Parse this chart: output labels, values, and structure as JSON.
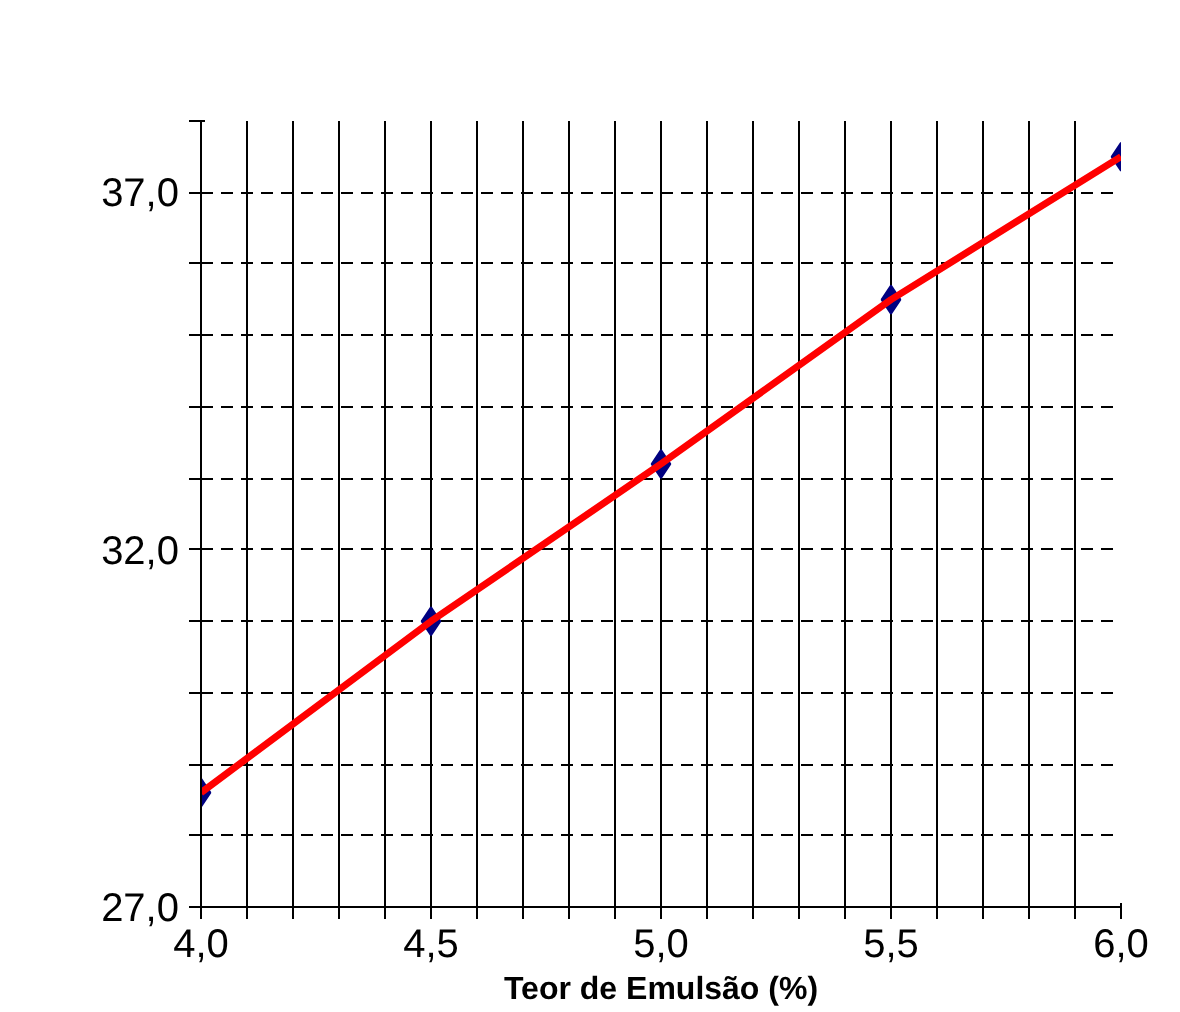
{
  "chart_data": {
    "type": "scatter",
    "xlabel": "Teor de Emulsão (%)",
    "series": [
      {
        "type": "scatter",
        "color": "#000080",
        "marker": "diamond",
        "x": [
          4.0,
          4.5,
          5.0,
          5.5,
          6.0
        ],
        "values": [
          28.6,
          31.0,
          33.2,
          35.5,
          37.5
        ]
      },
      {
        "type": "line",
        "color": "#ff0000",
        "marker": "none",
        "line_style": "solid",
        "x": [
          4.0,
          4.5,
          5.0,
          5.5,
          6.0
        ],
        "values": [
          28.6,
          31.0,
          33.2,
          35.5,
          37.5
        ]
      }
    ],
    "xlim": [
      4.0,
      6.0
    ],
    "ylim": [
      27,
      38
    ],
    "xticks": [
      {
        "value": 4.0,
        "label": "4,0"
      },
      {
        "value": 4.1,
        "label": null
      },
      {
        "value": 4.2,
        "label": null
      },
      {
        "value": 4.3,
        "label": null
      },
      {
        "value": 4.4,
        "label": null
      },
      {
        "value": 4.5,
        "label": "4,5"
      },
      {
        "value": 4.6,
        "label": null
      },
      {
        "value": 4.7,
        "label": null
      },
      {
        "value": 4.8,
        "label": null
      },
      {
        "value": 4.9,
        "label": null
      },
      {
        "value": 5.0,
        "label": "5,0"
      },
      {
        "value": 5.1,
        "label": null
      },
      {
        "value": 5.2,
        "label": null
      },
      {
        "value": 5.3,
        "label": null
      },
      {
        "value": 5.4,
        "label": null
      },
      {
        "value": 5.5,
        "label": "5,5"
      },
      {
        "value": 5.6,
        "label": null
      },
      {
        "value": 5.7,
        "label": null
      },
      {
        "value": 5.8,
        "label": null
      },
      {
        "value": 5.9,
        "label": null
      },
      {
        "value": 6.0,
        "label": "6,0"
      }
    ],
    "yticks": [
      {
        "value": 27,
        "label": "27,0"
      },
      {
        "value": 28,
        "label": null
      },
      {
        "value": 29,
        "label": null
      },
      {
        "value": 30,
        "label": null
      },
      {
        "value": 31,
        "label": null
      },
      {
        "value": 32,
        "label": "32,0"
      },
      {
        "value": 33,
        "label": null
      },
      {
        "value": 34,
        "label": null
      },
      {
        "value": 35,
        "label": null
      },
      {
        "value": 36,
        "label": null
      },
      {
        "value": 37,
        "label": "37,0"
      },
      {
        "value": 38,
        "label": null
      }
    ],
    "grid": true
  }
}
